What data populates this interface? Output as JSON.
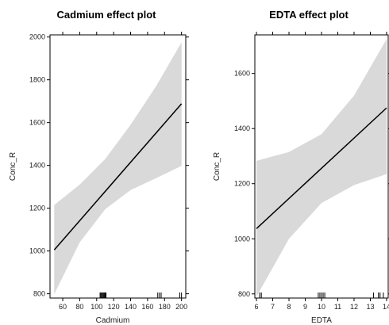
{
  "chart_data": [
    {
      "type": "line",
      "title": "Cadmium effect plot",
      "xlabel": "Cadmium",
      "ylabel": "Conc_R",
      "xlim": [
        45,
        205
      ],
      "ylim": [
        780,
        2010
      ],
      "xticks": [
        60,
        80,
        100,
        120,
        140,
        160,
        180,
        200
      ],
      "yticks": [
        800,
        1000,
        1200,
        1400,
        1600,
        1800,
        2000
      ],
      "grid": false,
      "fit": {
        "x": [
          50,
          200
        ],
        "y": [
          1005,
          1688
        ]
      },
      "band": {
        "x": [
          50,
          80,
          110,
          140,
          170,
          200
        ],
        "lower": [
          798,
          1040,
          1195,
          1285,
          1340,
          1398
        ],
        "upper": [
          1215,
          1310,
          1430,
          1590,
          1770,
          1975
        ]
      },
      "rug": [
        104,
        105,
        106,
        107,
        108,
        109,
        110,
        111,
        172,
        174,
        176,
        198,
        200
      ]
    },
    {
      "type": "line",
      "title": "EDTA effect plot",
      "xlabel": "EDTA",
      "ylabel": "Conc_R",
      "xlim": [
        5.9,
        14.1
      ],
      "ylim": [
        785,
        1740
      ],
      "xticks": [
        6,
        7,
        8,
        9,
        10,
        11,
        12,
        13,
        14
      ],
      "yticks": [
        800,
        1000,
        1200,
        1400,
        1600
      ],
      "grid": false,
      "fit": {
        "x": [
          6,
          14
        ],
        "y": [
          1037,
          1475
        ]
      },
      "band": {
        "x": [
          6,
          8,
          10,
          12,
          14
        ],
        "lower": [
          790,
          1000,
          1130,
          1195,
          1235
        ],
        "upper": [
          1283,
          1315,
          1380,
          1520,
          1725
        ]
      },
      "rug": [
        6.2,
        6.3,
        9.8,
        9.9,
        10.0,
        10.1,
        10.2,
        13.2,
        13.5,
        13.6,
        13.8
      ]
    }
  ]
}
